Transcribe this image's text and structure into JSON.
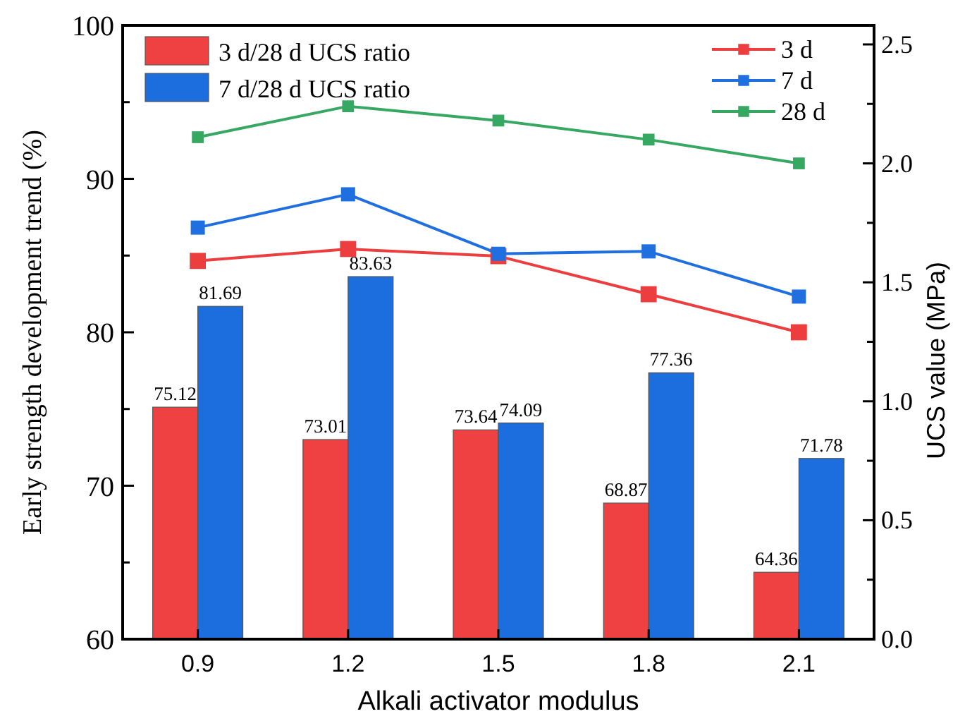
{
  "chart_data": {
    "type": "bar",
    "xlabel": "Alkali activator modulus",
    "ylabel": "Early strength development trend (%)",
    "y2label": "UCS value (MPa)",
    "categories": [
      "0.9",
      "1.2",
      "1.5",
      "1.8",
      "2.1"
    ],
    "series": [
      {
        "name": "3 d/28 d UCS ratio",
        "color": "#ef4141",
        "values": [
          75.12,
          73.01,
          73.64,
          68.87,
          64.36
        ],
        "value_labels": [
          "75.12",
          "73.01",
          "73.64",
          "68.87",
          "64.36"
        ]
      },
      {
        "name": "7 d/28 d UCS ratio",
        "color": "#1c6ddd",
        "values": [
          81.69,
          83.63,
          74.09,
          77.36,
          71.78
        ],
        "value_labels": [
          "81.69",
          "83.63",
          "74.09",
          "77.36",
          "71.78"
        ]
      },
      {
        "name": "3 d",
        "type": "line",
        "axis": "y2",
        "color": "#ec3e3e",
        "values": [
          1.59,
          1.64,
          1.61,
          1.45,
          1.29
        ]
      },
      {
        "name": "7 d",
        "type": "line",
        "axis": "y2",
        "color": "#1f6fe0",
        "values": [
          1.73,
          1.87,
          1.62,
          1.63,
          1.44
        ]
      },
      {
        "name": "28 d",
        "type": "line",
        "axis": "y2",
        "color": "#37a862",
        "values": [
          2.11,
          2.24,
          2.18,
          2.1,
          2.0
        ]
      }
    ],
    "marker": "square",
    "legend": "top",
    "ylim": [
      60,
      100
    ],
    "yticks": [
      60,
      {
        "value": 65,
        "label": null
      },
      70,
      {
        "value": 75,
        "label": null
      },
      80,
      {
        "value": 85,
        "label": null
      },
      90,
      {
        "value": 95,
        "label": null
      },
      100
    ],
    "y2lim": [
      0,
      2.58
    ],
    "y2ticks": [
      {
        "value": 0,
        "label": "0.0"
      },
      {
        "value": 0.25,
        "label": null
      },
      0.5,
      {
        "value": 0.75,
        "label": null
      },
      {
        "value": 1,
        "label": "1.0"
      },
      {
        "value": 1.25,
        "label": null
      },
      1.5,
      {
        "value": 1.75,
        "label": null
      },
      {
        "value": 2,
        "label": "2.0"
      },
      {
        "value": 2.25,
        "label": null
      },
      2.5
    ]
  }
}
